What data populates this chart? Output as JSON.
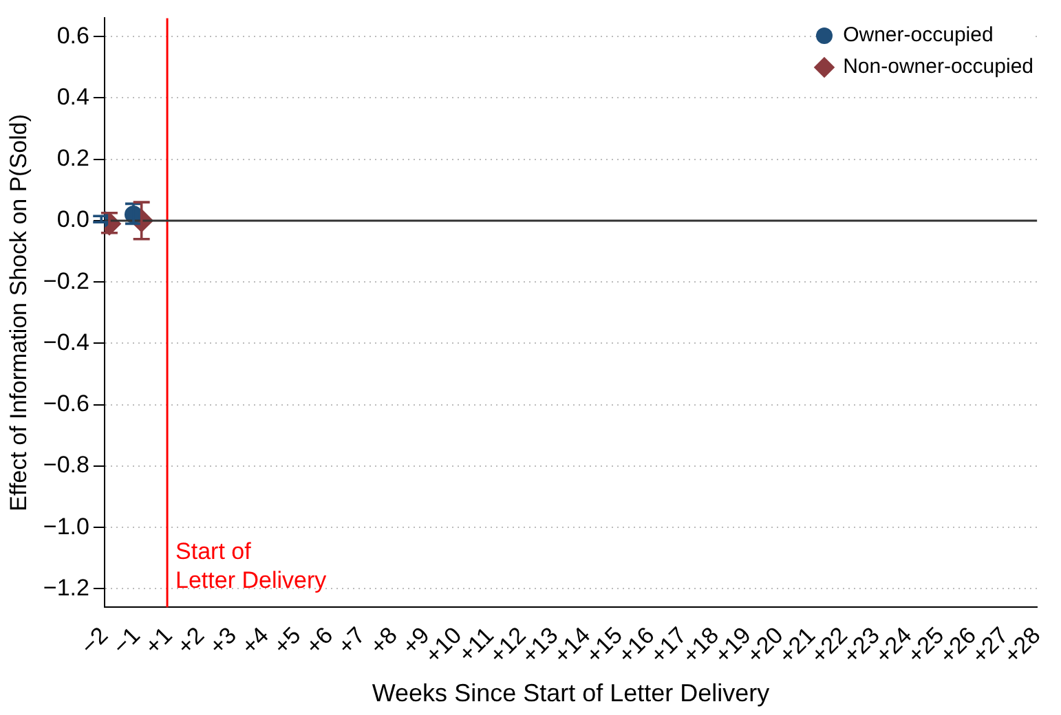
{
  "chart_data": {
    "type": "scatter",
    "xlabel": "Weeks Since Start of Letter Delivery",
    "ylabel": "Effect of Information Shock on P(Sold)",
    "categories": [
      "−2",
      "−1",
      "+1",
      "+2",
      "+3",
      "+4",
      "+5",
      "+6",
      "+7",
      "+8",
      "+9",
      "+10",
      "+11",
      "+12",
      "+13",
      "+14",
      "+15",
      "+16",
      "+17",
      "+18",
      "+19",
      "+20",
      "+21",
      "+22",
      "+23",
      "+24",
      "+25",
      "+26",
      "+27",
      "+28"
    ],
    "series": [
      {
        "name": "Owner-occupied",
        "color": "#1f4e79",
        "marker": "circle",
        "values": [
          0.005,
          0.02,
          null,
          null,
          null,
          null,
          null,
          null,
          null,
          null,
          null,
          null,
          null,
          null,
          null,
          null,
          null,
          null,
          null,
          null,
          null,
          null,
          null,
          null,
          null,
          null,
          null,
          null,
          null,
          null
        ],
        "errors": [
          0.01,
          [
            -0.01,
            0.055
          ],
          null,
          null,
          null,
          null,
          null,
          null,
          null,
          null,
          null,
          null,
          null,
          null,
          null,
          null,
          null,
          null,
          null,
          null,
          null,
          null,
          null,
          null,
          null,
          null,
          null,
          null,
          null,
          null
        ]
      },
      {
        "name": "Non-owner-occupied",
        "color": "#8b3a3e",
        "marker": "diamond",
        "values": [
          -0.01,
          0.0,
          null,
          null,
          null,
          null,
          null,
          null,
          null,
          null,
          null,
          null,
          null,
          null,
          null,
          null,
          null,
          null,
          null,
          null,
          null,
          null,
          null,
          null,
          null,
          null,
          null,
          null,
          null,
          null
        ],
        "errors": [
          [
            -0.04,
            0.025
          ],
          0.06,
          null,
          null,
          null,
          null,
          null,
          null,
          null,
          null,
          null,
          null,
          null,
          null,
          null,
          null,
          null,
          null,
          null,
          null,
          null,
          null,
          null,
          null,
          null,
          null,
          null,
          null,
          null,
          null
        ]
      }
    ],
    "ylim": [
      -1.26,
      0.66
    ],
    "yticks": [
      0.6,
      0.4,
      0.2,
      {
        "value": 0,
        "label": "0.0"
      },
      {
        "value": -0.2,
        "label": "−0.2"
      },
      {
        "value": -0.4,
        "label": "−0.4"
      },
      {
        "value": -0.6,
        "label": "−0.6"
      },
      {
        "value": -0.8,
        "label": "−0.8"
      },
      {
        "value": -1,
        "label": "−1.0"
      },
      {
        "value": -1.2,
        "label": "−1.2"
      }
    ],
    "grid": "y",
    "legend": "top right",
    "ref_lines": [
      {
        "axis": "x",
        "value": "+1",
        "label": "Start of\nLetter Delivery",
        "color": "#ff0000"
      },
      {
        "axis": "y",
        "value": 0,
        "label": null,
        "color": "#333333"
      }
    ]
  }
}
